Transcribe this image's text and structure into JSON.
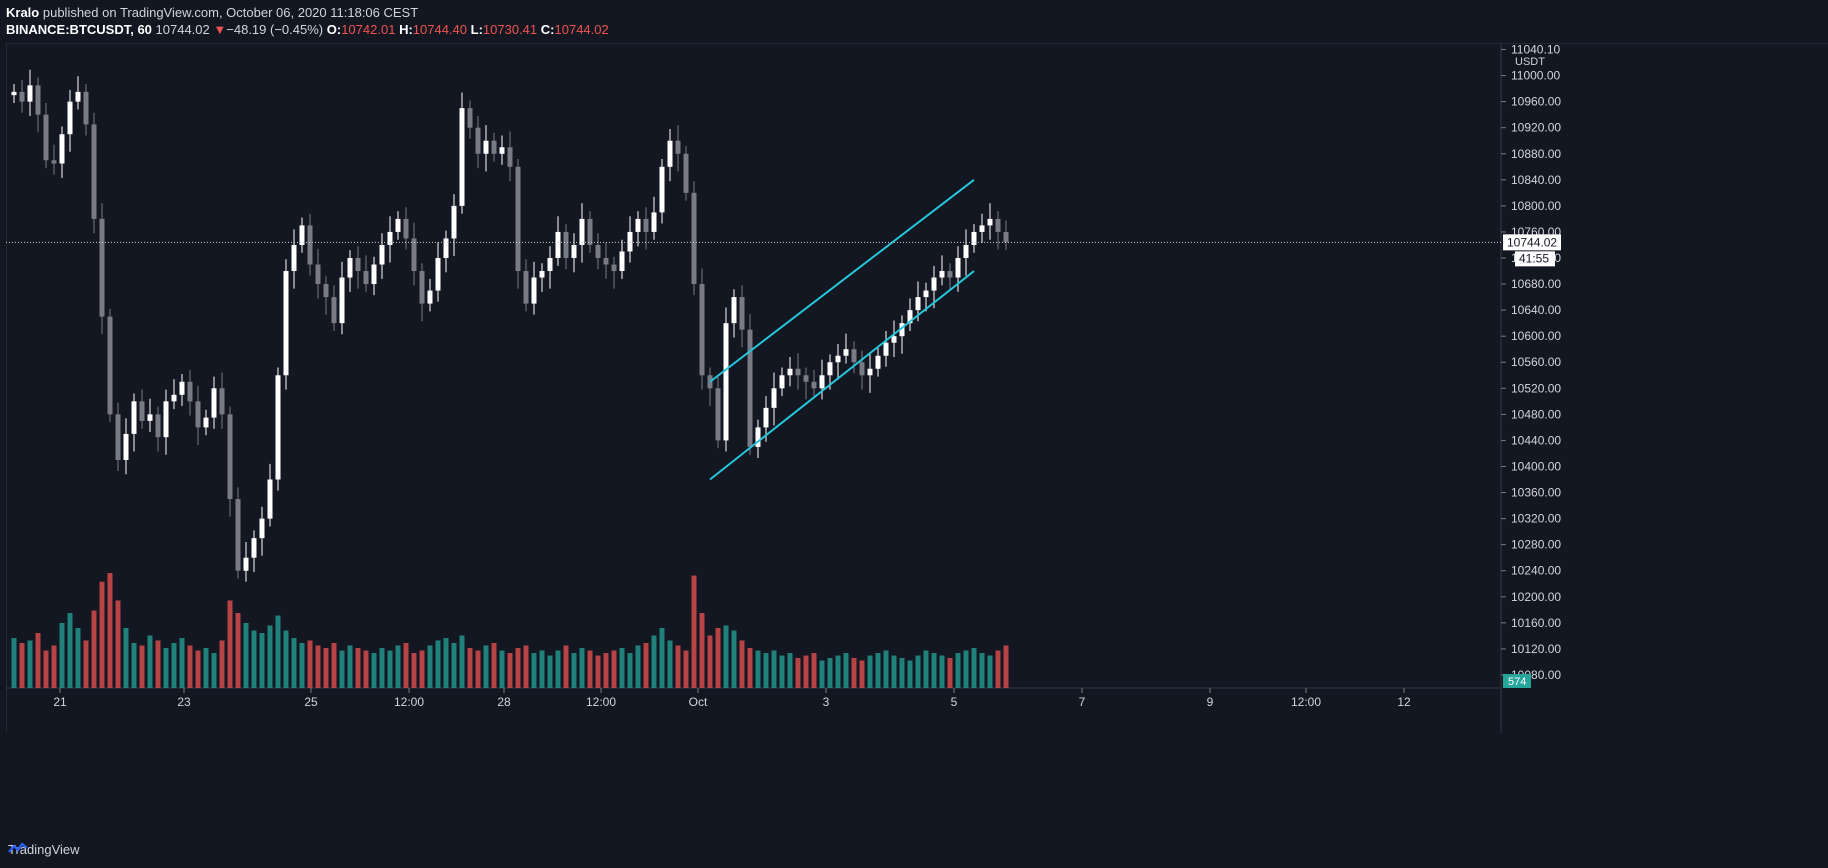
{
  "header": {
    "author": "Kralo",
    "published_text": "published on TradingView.com, October 06, 2020 11:18:06 CEST",
    "symbol": "BINANCE:BTCUSDT, 60",
    "last": "10744.02",
    "change_arrow": "▼",
    "change": "−48.19 (−0.45%)",
    "o_label": "O:",
    "o_value": "10742.01",
    "h_label": "H:",
    "h_value": "10744.40",
    "l_label": "L:",
    "l_value": "10730.41",
    "c_label": "C:",
    "c_value": "10744.02"
  },
  "footer": {
    "brand": "TradingView"
  },
  "colors": {
    "bg": "#131722",
    "grid": "#1e222d",
    "up": "#ffffff",
    "down": "#787b86",
    "vol_up": "#26a69a",
    "vol_down": "#ef5350",
    "channel": "#26c6da"
  },
  "chart_data": {
    "type": "candlestick",
    "currency": "USDT",
    "y_ticks": [
      "11040.10",
      "11000.00",
      "10960.00",
      "10920.00",
      "10880.00",
      "10840.00",
      "10800.00",
      "10760.00",
      "10720.00",
      "10680.00",
      "10640.00",
      "10600.00",
      "10560.00",
      "10520.00",
      "10480.00",
      "10440.00",
      "10400.00",
      "10360.00",
      "10320.00",
      "10280.00",
      "10240.00",
      "10200.00",
      "10160.00",
      "10120.00",
      "10080.00"
    ],
    "x_ticks": [
      "21",
      "23",
      "25",
      "12:00",
      "28",
      "12:00",
      "Oct",
      "3",
      "5",
      "7",
      "9",
      "12:00",
      "12"
    ],
    "ylim": [
      10060,
      11050
    ],
    "last_price_label": "10744.02",
    "countdown_label": "41:55",
    "volume_label": "574",
    "price_path": [
      10975,
      10960,
      10985,
      10940,
      10870,
      10865,
      10910,
      10960,
      10975,
      10925,
      10780,
      10630,
      10480,
      10410,
      10450,
      10500,
      10470,
      10480,
      10445,
      10500,
      10510,
      10530,
      10500,
      10460,
      10475,
      10520,
      10480,
      10350,
      10240,
      10260,
      10290,
      10320,
      10380,
      10540,
      10700,
      10740,
      10770,
      10710,
      10680,
      10660,
      10620,
      10690,
      10720,
      10700,
      10680,
      10710,
      10740,
      10760,
      10780,
      10750,
      10700,
      10650,
      10670,
      10720,
      10750,
      10800,
      10950,
      10920,
      10880,
      10900,
      10880,
      10890,
      10860,
      10700,
      10650,
      10690,
      10700,
      10720,
      10760,
      10720,
      10740,
      10780,
      10740,
      10720,
      10710,
      10700,
      10730,
      10760,
      10780,
      10760,
      10790,
      10860,
      10900,
      10880,
      10820,
      10680,
      10540,
      10520,
      10440,
      10620,
      10660,
      10610,
      10430,
      10460,
      10490,
      10520,
      10540,
      10550,
      10540,
      10530,
      10520,
      10540,
      10560,
      10570,
      10580,
      10560,
      10540,
      10550,
      10570,
      10590,
      10600,
      10620,
      10640,
      10660,
      10670,
      10690,
      10700,
      10690,
      10720,
      10740,
      10760,
      10770,
      10780,
      10760,
      10744
    ],
    "volume_path": [
      40,
      36,
      38,
      44,
      30,
      34,
      52,
      60,
      48,
      38,
      62,
      85,
      92,
      70,
      48,
      36,
      34,
      42,
      38,
      32,
      36,
      40,
      34,
      30,
      32,
      28,
      38,
      70,
      60,
      52,
      46,
      44,
      50,
      58,
      46,
      40,
      36,
      38,
      34,
      32,
      36,
      30,
      34,
      32,
      30,
      28,
      32,
      30,
      34,
      36,
      28,
      30,
      34,
      38,
      40,
      36,
      42,
      32,
      30,
      34,
      36,
      30,
      28,
      32,
      34,
      28,
      30,
      26,
      30,
      34,
      28,
      32,
      30,
      26,
      28,
      30,
      32,
      28,
      34,
      36,
      42,
      48,
      38,
      34,
      30,
      90,
      60,
      42,
      48,
      50,
      46,
      38,
      32,
      30,
      28,
      30,
      26,
      28,
      24,
      26,
      28,
      22,
      24,
      26,
      28,
      24,
      22,
      26,
      28,
      30,
      26,
      24,
      22,
      26,
      30,
      28,
      26,
      24,
      28,
      30,
      32,
      28,
      26,
      30,
      34
    ],
    "channel": {
      "upper": [
        {
          "i": 87,
          "price": 10530
        },
        {
          "i": 120,
          "price": 10840
        }
      ],
      "lower": [
        {
          "i": 87,
          "price": 10380
        },
        {
          "i": 120,
          "price": 10700
        }
      ]
    }
  }
}
